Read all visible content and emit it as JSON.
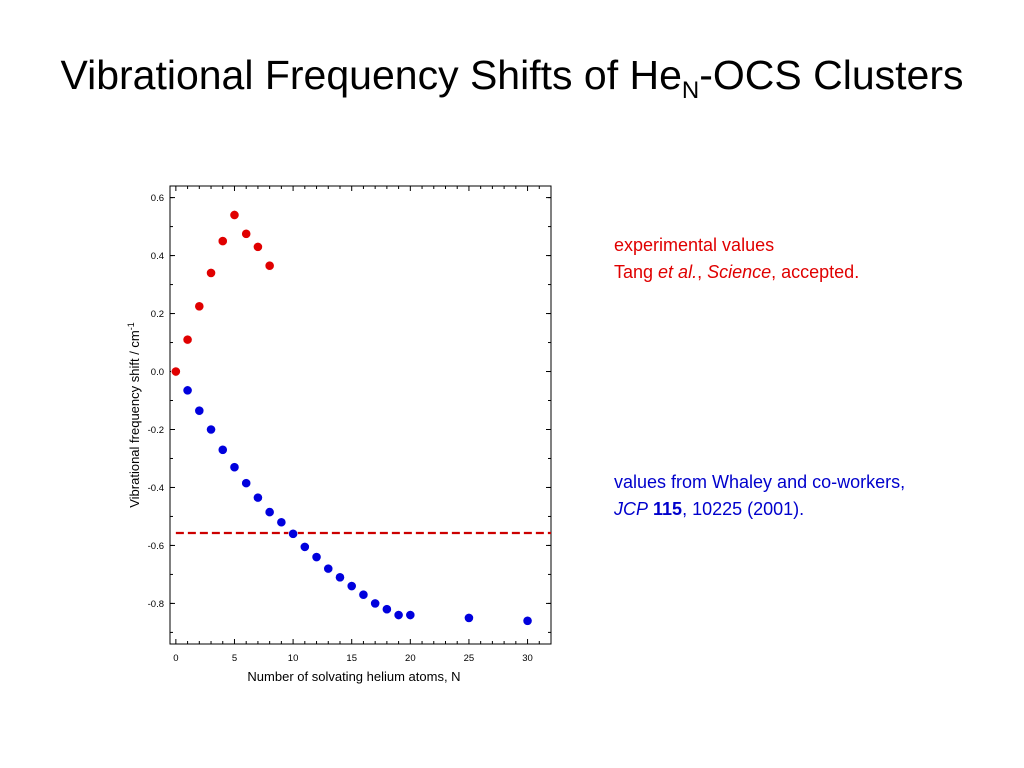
{
  "title": {
    "main": "Vibrational Frequency Shifts of He",
    "subscript": "N",
    "suffix": "-OCS Clusters"
  },
  "annotations": {
    "experimental": {
      "line1": "experimental values",
      "author": "Tang ",
      "etal": "et al.",
      "comma1": ", ",
      "journal": "Science",
      "rest": ", accepted.",
      "color": "#e00000"
    },
    "whaley": {
      "line1": "values from Whaley and co-workers,",
      "journal": "JCP",
      "space": " ",
      "volume": "115",
      "rest": ", 10225 (2001).",
      "color": "#0000cc"
    }
  },
  "chart_data": {
    "type": "scatter",
    "xlabel": "Number of solvating helium atoms, N",
    "ylabel_main": "Vibrational frequency shift / cm",
    "ylabel_sup": "-1",
    "xlim": [
      -0.5,
      32
    ],
    "ylim": [
      -0.94,
      0.64
    ],
    "xticks": [
      0,
      5,
      10,
      15,
      20,
      25,
      30
    ],
    "yticks": [
      0.6,
      0.4,
      0.2,
      0.0,
      -0.2,
      -0.4,
      -0.6,
      -0.8
    ],
    "ytick_labels": [
      "0.6",
      "0.4",
      "0.2",
      "0.0",
      "-0.2",
      "-0.4",
      "-0.6",
      "-0.8"
    ],
    "grid": false,
    "series": [
      {
        "color": "#e00000",
        "x": [
          0,
          1,
          2,
          3,
          4,
          5,
          6,
          7,
          8
        ],
        "y": [
          0.0,
          0.11,
          0.225,
          0.34,
          0.45,
          0.54,
          0.475,
          0.43,
          0.365
        ]
      },
      {
        "color": "#0000dd",
        "x": [
          1,
          2,
          3,
          4,
          5,
          6,
          7,
          8,
          9,
          10,
          11,
          12,
          13,
          14,
          15,
          16,
          17,
          18,
          19,
          20,
          25,
          30
        ],
        "y": [
          -0.065,
          -0.135,
          -0.2,
          -0.27,
          -0.33,
          -0.385,
          -0.435,
          -0.485,
          -0.52,
          -0.56,
          -0.605,
          -0.64,
          -0.68,
          -0.71,
          -0.74,
          -0.77,
          -0.8,
          -0.82,
          -0.84,
          -0.84,
          -0.85,
          -0.86
        ]
      }
    ],
    "reference_line": {
      "y": -0.557,
      "style": "dashed",
      "color": "#cc0000"
    }
  }
}
